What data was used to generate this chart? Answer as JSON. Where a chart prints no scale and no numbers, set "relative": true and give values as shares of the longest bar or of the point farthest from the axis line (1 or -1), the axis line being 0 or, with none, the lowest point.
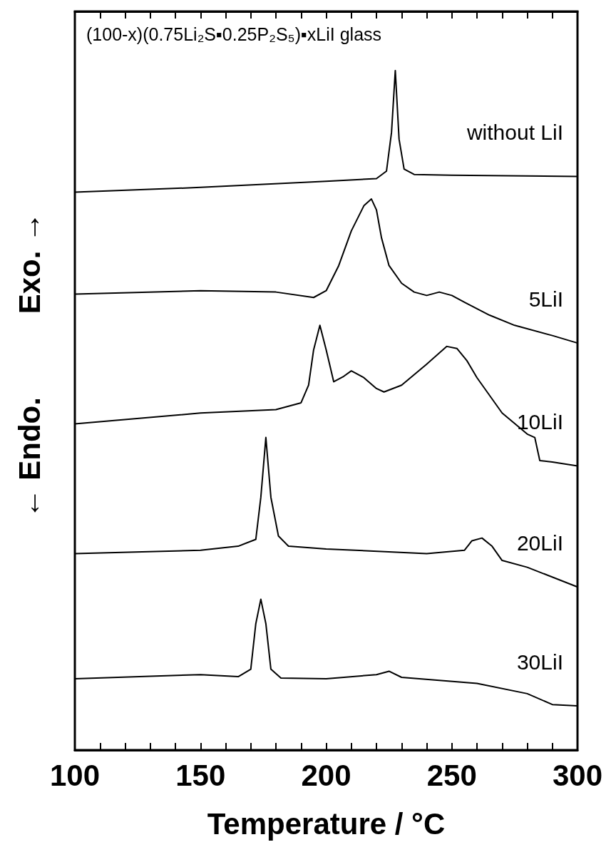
{
  "chart_data": {
    "type": "line",
    "relative": true,
    "title": "(100-x)(0.75Li₂S▪0.25P₂S₅)▪xLiI glass",
    "xlabel": "Temperature / °C",
    "ylabel": "← Endo.          Exo. →",
    "xlim": [
      100,
      300
    ],
    "xticks": [
      100,
      {
        "value": 110,
        "label": null
      },
      {
        "value": 120,
        "label": null
      },
      {
        "value": 130,
        "label": null
      },
      {
        "value": 140,
        "label": null
      },
      150,
      {
        "value": 160,
        "label": null
      },
      {
        "value": 170,
        "label": null
      },
      {
        "value": 180,
        "label": null
      },
      {
        "value": 190,
        "label": null
      },
      200,
      {
        "value": 210,
        "label": null
      },
      {
        "value": 220,
        "label": null
      },
      {
        "value": 230,
        "label": null
      },
      {
        "value": 240,
        "label": null
      },
      250,
      {
        "value": 260,
        "label": null
      },
      {
        "value": 270,
        "label": null
      },
      {
        "value": 280,
        "label": null
      },
      {
        "value": 290,
        "label": null
      },
      300
    ],
    "grid": false,
    "marker": "none",
    "line_style": "solid",
    "series": [
      {
        "name": "without LiI",
        "color": "#000000",
        "x": [
          100,
          150,
          200,
          220,
          224,
          226,
          227.5,
          229,
          231,
          235,
          250,
          300
        ],
        "values": [
          0.821,
          0.828,
          0.837,
          0.841,
          0.852,
          0.909,
          1.0,
          0.899,
          0.855,
          0.847,
          0.846,
          0.844
        ]
      },
      {
        "name": "5LiI",
        "color": "#000000",
        "x": [
          100,
          150,
          180,
          195,
          200,
          205,
          210,
          215,
          218,
          220,
          222,
          225,
          230,
          235,
          240,
          245,
          250,
          255,
          265,
          275,
          290,
          300
        ],
        "values": [
          0.671,
          0.676,
          0.674,
          0.666,
          0.676,
          0.713,
          0.764,
          0.801,
          0.811,
          0.795,
          0.754,
          0.713,
          0.687,
          0.674,
          0.669,
          0.674,
          0.669,
          0.659,
          0.64,
          0.625,
          0.61,
          0.599
        ]
      },
      {
        "name": "10LiI",
        "color": "#000000",
        "x": [
          100,
          150,
          180,
          190,
          193,
          195,
          197.5,
          200,
          203,
          207,
          210,
          215,
          220,
          223,
          230,
          240,
          248,
          252,
          256,
          260,
          270,
          280,
          283,
          285,
          290,
          300
        ],
        "values": [
          0.48,
          0.496,
          0.501,
          0.511,
          0.537,
          0.589,
          0.625,
          0.589,
          0.542,
          0.55,
          0.558,
          0.548,
          0.532,
          0.527,
          0.537,
          0.568,
          0.594,
          0.591,
          0.573,
          0.548,
          0.496,
          0.465,
          0.46,
          0.426,
          0.424,
          0.418
        ]
      },
      {
        "name": "20LiI",
        "color": "#000000",
        "x": [
          100,
          150,
          165,
          172,
          174,
          176,
          178,
          181,
          185,
          200,
          240,
          255,
          258,
          262,
          266,
          270,
          280,
          300
        ],
        "values": [
          0.289,
          0.294,
          0.3,
          0.31,
          0.372,
          0.46,
          0.372,
          0.315,
          0.3,
          0.296,
          0.289,
          0.294,
          0.308,
          0.312,
          0.3,
          0.279,
          0.269,
          0.24
        ]
      },
      {
        "name": "30LiI",
        "color": "#000000",
        "x": [
          100,
          150,
          165,
          170,
          172,
          174,
          176,
          178,
          182,
          200,
          220,
          225,
          230,
          260,
          280,
          290,
          300
        ],
        "values": [
          0.105,
          0.111,
          0.108,
          0.119,
          0.186,
          0.222,
          0.186,
          0.119,
          0.106,
          0.105,
          0.111,
          0.116,
          0.107,
          0.098,
          0.083,
          0.067,
          0.065
        ]
      }
    ]
  }
}
